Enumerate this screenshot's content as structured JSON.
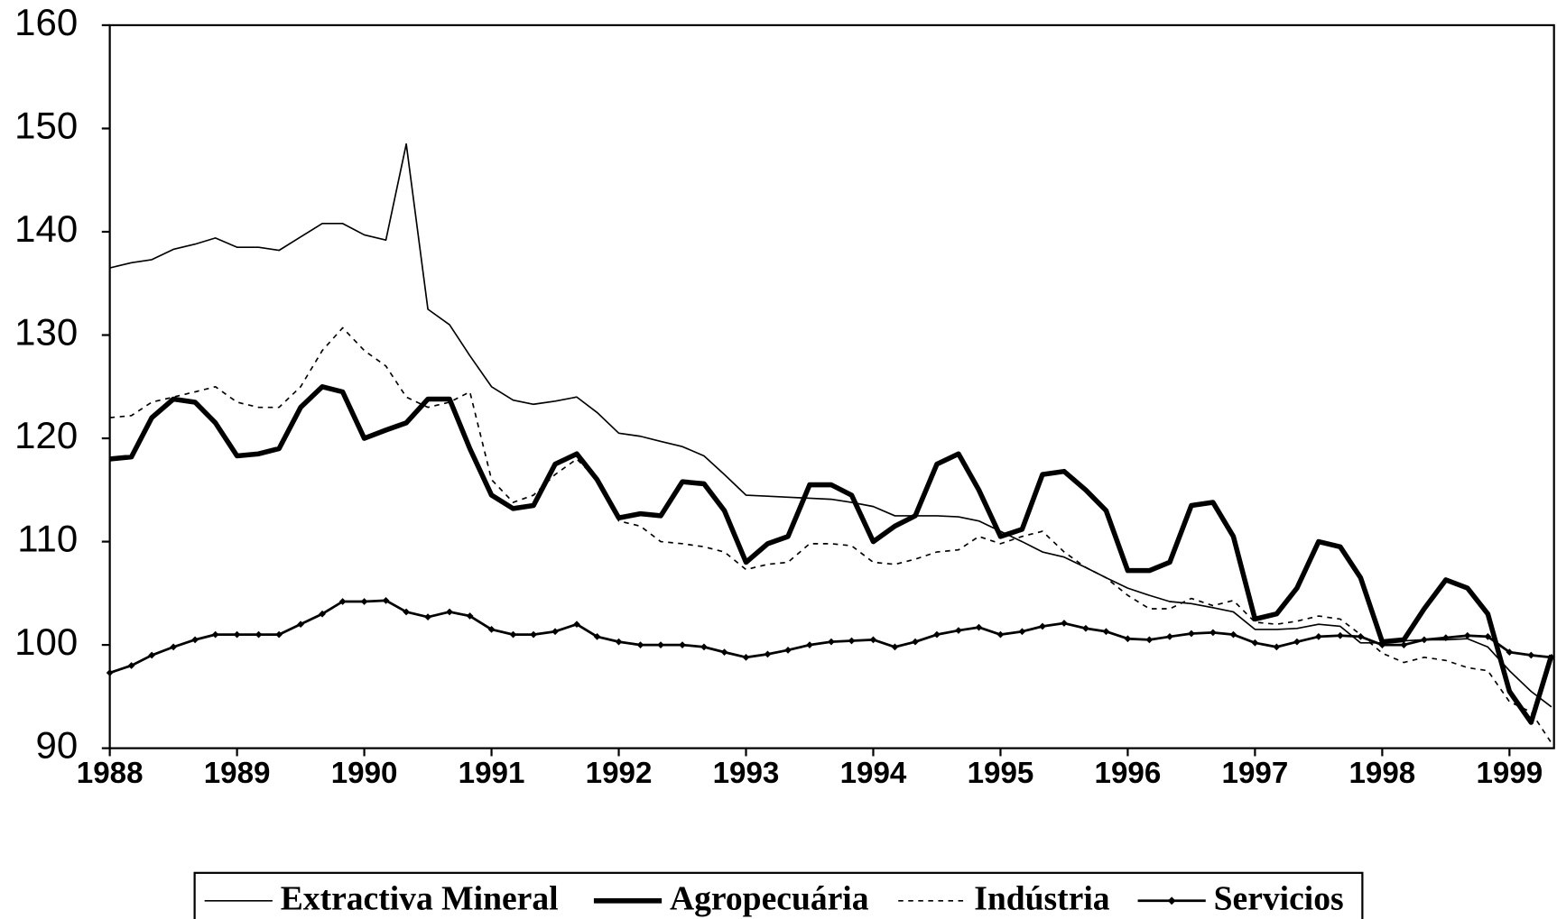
{
  "chart_data": {
    "type": "line",
    "x": [
      1988,
      1988.17,
      1988.33,
      1988.5,
      1988.67,
      1988.83,
      1989,
      1989.17,
      1989.33,
      1989.5,
      1989.67,
      1989.83,
      1990,
      1990.17,
      1990.33,
      1990.5,
      1990.67,
      1990.83,
      1991,
      1991.17,
      1991.33,
      1991.5,
      1991.67,
      1991.83,
      1992,
      1992.17,
      1992.33,
      1992.5,
      1992.67,
      1992.83,
      1993,
      1993.17,
      1993.33,
      1993.5,
      1993.67,
      1993.83,
      1994,
      1994.17,
      1994.33,
      1994.5,
      1994.67,
      1994.83,
      1995,
      1995.17,
      1995.33,
      1995.5,
      1995.67,
      1995.83,
      1996,
      1996.17,
      1996.33,
      1996.5,
      1996.67,
      1996.83,
      1997,
      1997.17,
      1997.33,
      1997.5,
      1997.67,
      1997.83,
      1998,
      1998.17,
      1998.33,
      1998.5,
      1998.67,
      1998.83,
      1999,
      1999.17,
      1999.33
    ],
    "series": [
      {
        "name": "Extractiva Mineral",
        "color": "#000000",
        "line_width": 1.5,
        "dash": "solid",
        "marker": "none",
        "values": [
          136.5,
          137,
          137.3,
          138.3,
          138.8,
          139.4,
          138.5,
          138.5,
          138.2,
          139.5,
          140.8,
          140.8,
          139.7,
          139.2,
          148.5,
          132.5,
          131,
          128,
          125,
          123.7,
          123.3,
          123.6,
          124,
          122.5,
          120.5,
          120.2,
          119.7,
          119.2,
          118.3,
          116.5,
          114.5,
          114.4,
          114.3,
          114.2,
          114.1,
          113.8,
          113.4,
          112.5,
          112.5,
          112.5,
          112.4,
          112,
          111,
          110,
          109,
          108.5,
          107.5,
          106.5,
          105.5,
          104.8,
          104.2,
          104,
          103.6,
          103.2,
          101.5,
          101.5,
          101.6,
          102,
          101.8,
          100.2,
          100.2,
          100.4,
          100.5,
          100.5,
          100.6,
          99.8,
          97.5,
          95.5,
          94
        ]
      },
      {
        "name": "Agropecuária",
        "color": "#000000",
        "line_width": 5,
        "dash": "solid",
        "marker": "none",
        "values": [
          118,
          118.2,
          122,
          123.8,
          123.5,
          121.5,
          118.3,
          118.5,
          119,
          123,
          125,
          124.5,
          120,
          120.8,
          121.5,
          123.8,
          123.8,
          119,
          114.5,
          113.2,
          113.5,
          117.5,
          118.5,
          116,
          112.3,
          112.7,
          112.5,
          115.8,
          115.6,
          113,
          108,
          109.8,
          110.5,
          115.5,
          115.5,
          114.5,
          110,
          111.5,
          112.5,
          117.5,
          118.5,
          115,
          110.5,
          111.2,
          116.5,
          116.8,
          115,
          113,
          107.2,
          107.2,
          108,
          113.5,
          113.8,
          110.5,
          102.5,
          103,
          105.5,
          110,
          109.5,
          106.5,
          100.3,
          100.5,
          103.5,
          106.3,
          105.5,
          103,
          95.5,
          92.5,
          99
        ]
      },
      {
        "name": "Indústria",
        "color": "#000000",
        "line_width": 1.5,
        "dash": "dashed",
        "marker": "none",
        "values": [
          122,
          122.2,
          123.5,
          124,
          124.5,
          125,
          123.5,
          123,
          123,
          125,
          128.5,
          130.7,
          128.5,
          127,
          124,
          123,
          123.5,
          124.5,
          116,
          113.8,
          114.5,
          116.5,
          118,
          116,
          112,
          111.5,
          110,
          109.8,
          109.5,
          109,
          107.3,
          107.8,
          108,
          109.8,
          109.8,
          109.6,
          108,
          107.8,
          108.3,
          109,
          109.2,
          110.5,
          109.8,
          110.5,
          111,
          109,
          107.5,
          106.5,
          104.8,
          103.5,
          103.5,
          104.5,
          103.8,
          104.3,
          102.2,
          102,
          102.3,
          102.8,
          102.5,
          101,
          99.2,
          98.3,
          98.8,
          98.5,
          97.8,
          97.5,
          94.5,
          93.5,
          90.5
        ]
      },
      {
        "name": "Servicios",
        "color": "#000000",
        "line_width": 2.5,
        "dash": "solid",
        "marker": "diamond",
        "values": [
          97.3,
          98,
          99,
          99.8,
          100.5,
          101,
          101,
          101,
          101,
          102,
          103,
          104.2,
          104.2,
          104.3,
          103.2,
          102.7,
          103.2,
          102.8,
          101.5,
          101,
          101,
          101.3,
          102,
          100.8,
          100.3,
          100,
          100,
          100,
          99.8,
          99.3,
          98.8,
          99.1,
          99.5,
          100,
          100.3,
          100.4,
          100.5,
          99.8,
          100.3,
          101,
          101.4,
          101.7,
          101,
          101.3,
          101.8,
          102.1,
          101.6,
          101.3,
          100.6,
          100.5,
          100.8,
          101.1,
          101.2,
          101,
          100.2,
          99.8,
          100.3,
          100.8,
          100.9,
          100.8,
          100,
          100,
          100.5,
          100.7,
          100.9,
          100.8,
          99.3,
          99,
          98.8
        ]
      }
    ],
    "xlim": [
      1988,
      1999.35
    ],
    "xticks": [
      1988,
      1989,
      1990,
      1991,
      1992,
      1993,
      1994,
      1995,
      1996,
      1997,
      1998,
      1999
    ],
    "ylim": [
      90,
      160
    ],
    "yticks": [
      90,
      100,
      110,
      120,
      130,
      140,
      150,
      160
    ],
    "grid": false,
    "legend": "bottom"
  }
}
